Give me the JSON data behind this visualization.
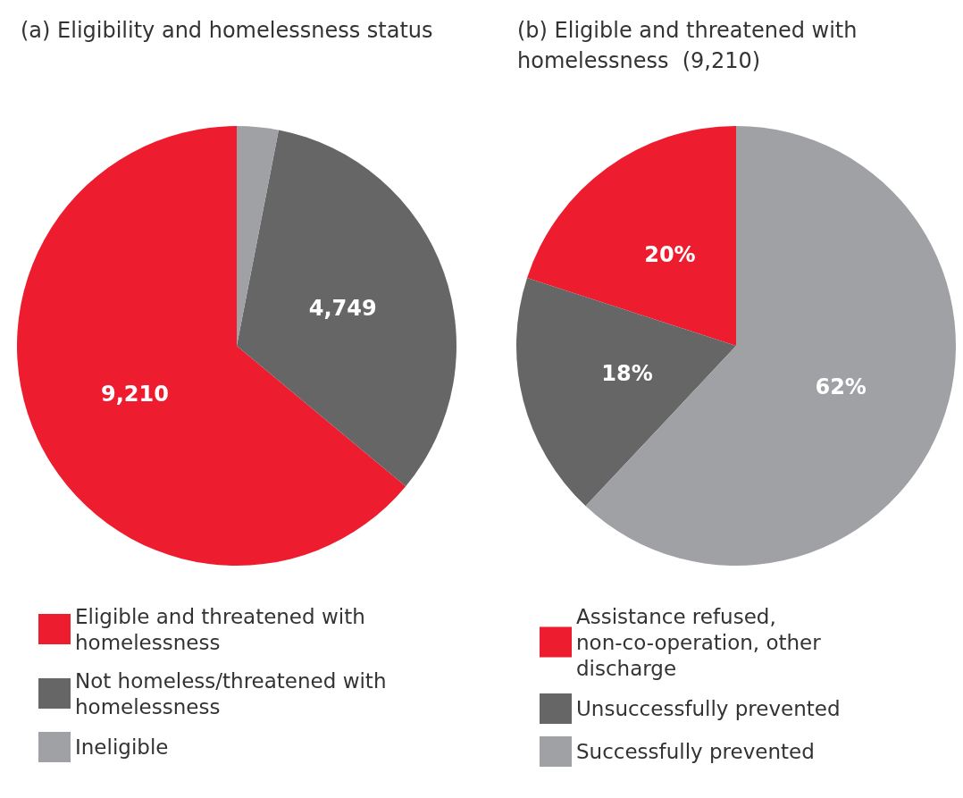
{
  "chart_data": [
    {
      "type": "pie",
      "title": "(a) Eligibility and homelessness status",
      "categories": [
        "Eligible and threatened with homelessness",
        "Not homeless/threatened with homelessness",
        "Ineligible"
      ],
      "values": [
        9210,
        4749,
        440
      ],
      "colors": [
        "#ed1c2e",
        "#666666",
        "#a0a1a5"
      ],
      "value_labels": [
        "9,210",
        "4,749",
        null
      ],
      "legend": "bottom"
    },
    {
      "type": "pie",
      "title": "(b) Eligible and threatened with homelessness  (9,210)",
      "categories": [
        "Assistance refused, non-co-operation, other discharge",
        "Unsuccessfully prevented",
        "Successfully prevented"
      ],
      "values": [
        20,
        18,
        62
      ],
      "colors": [
        "#ed1c2e",
        "#666666",
        "#a0a1a5"
      ],
      "value_labels": [
        "20%",
        "18%",
        "62%"
      ],
      "legend": "bottom"
    }
  ]
}
